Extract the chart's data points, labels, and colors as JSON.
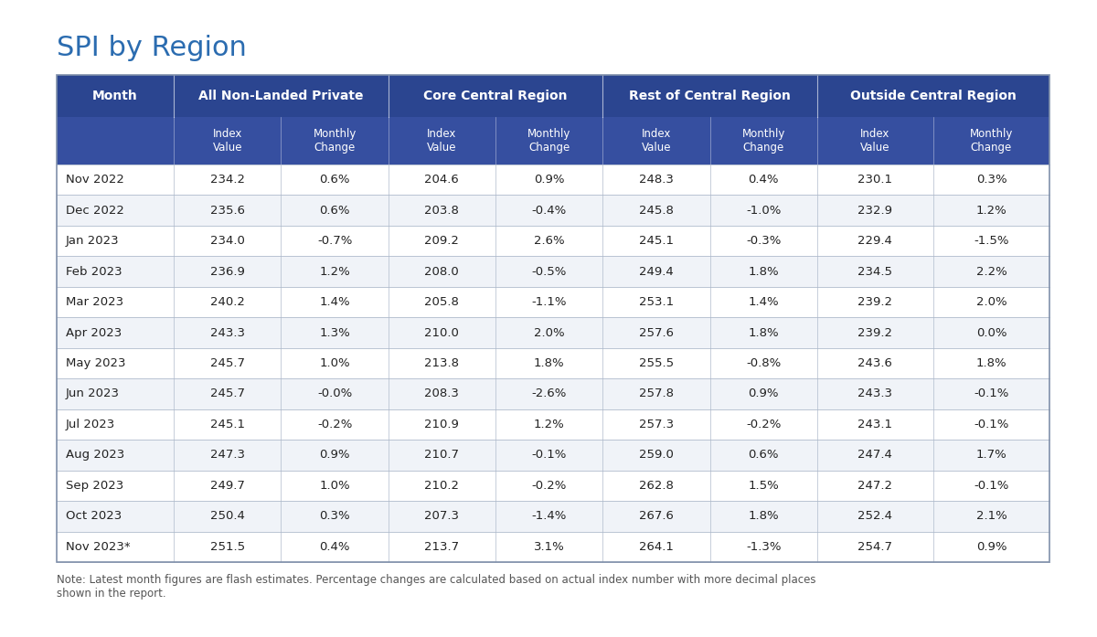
{
  "title": "SPI by Region",
  "note": "Note: Latest month figures are flash estimates. Percentage changes are calculated based on actual index number with more decimal places\nshown in the report.",
  "rows": [
    [
      "Nov 2022",
      "234.2",
      "0.6%",
      "204.6",
      "0.9%",
      "248.3",
      "0.4%",
      "230.1",
      "0.3%"
    ],
    [
      "Dec 2022",
      "235.6",
      "0.6%",
      "203.8",
      "-0.4%",
      "245.8",
      "-1.0%",
      "232.9",
      "1.2%"
    ],
    [
      "Jan 2023",
      "234.0",
      "-0.7%",
      "209.2",
      "2.6%",
      "245.1",
      "-0.3%",
      "229.4",
      "-1.5%"
    ],
    [
      "Feb 2023",
      "236.9",
      "1.2%",
      "208.0",
      "-0.5%",
      "249.4",
      "1.8%",
      "234.5",
      "2.2%"
    ],
    [
      "Mar 2023",
      "240.2",
      "1.4%",
      "205.8",
      "-1.1%",
      "253.1",
      "1.4%",
      "239.2",
      "2.0%"
    ],
    [
      "Apr 2023",
      "243.3",
      "1.3%",
      "210.0",
      "2.0%",
      "257.6",
      "1.8%",
      "239.2",
      "0.0%"
    ],
    [
      "May 2023",
      "245.7",
      "1.0%",
      "213.8",
      "1.8%",
      "255.5",
      "-0.8%",
      "243.6",
      "1.8%"
    ],
    [
      "Jun 2023",
      "245.7",
      "-0.0%",
      "208.3",
      "-2.6%",
      "257.8",
      "0.9%",
      "243.3",
      "-0.1%"
    ],
    [
      "Jul 2023",
      "245.1",
      "-0.2%",
      "210.9",
      "1.2%",
      "257.3",
      "-0.2%",
      "243.1",
      "-0.1%"
    ],
    [
      "Aug 2023",
      "247.3",
      "0.9%",
      "210.7",
      "-0.1%",
      "259.0",
      "0.6%",
      "247.4",
      "1.7%"
    ],
    [
      "Sep 2023",
      "249.7",
      "1.0%",
      "210.2",
      "-0.2%",
      "262.8",
      "1.5%",
      "247.2",
      "-0.1%"
    ],
    [
      "Oct 2023",
      "250.4",
      "0.3%",
      "207.3",
      "-1.4%",
      "267.6",
      "1.8%",
      "252.4",
      "2.1%"
    ],
    [
      "Nov 2023*",
      "251.5",
      "0.4%",
      "213.7",
      "3.1%",
      "264.1",
      "-1.3%",
      "254.7",
      "0.9%"
    ]
  ],
  "header_bg_color": "#2B4590",
  "subheader_bg_color": "#364FA0",
  "header_text_color": "#FFFFFF",
  "row_bg_even": "#FFFFFF",
  "row_bg_odd": "#F0F3F8",
  "border_color": "#B0BBCC",
  "outer_border_color": "#8090AA",
  "title_color": "#2B6CB0",
  "body_text_color": "#222222",
  "note_text_color": "#555555",
  "title_fontsize": 22,
  "header1_fontsize": 10,
  "header2_fontsize": 8.5,
  "body_fontsize": 9.5,
  "note_fontsize": 8.5
}
